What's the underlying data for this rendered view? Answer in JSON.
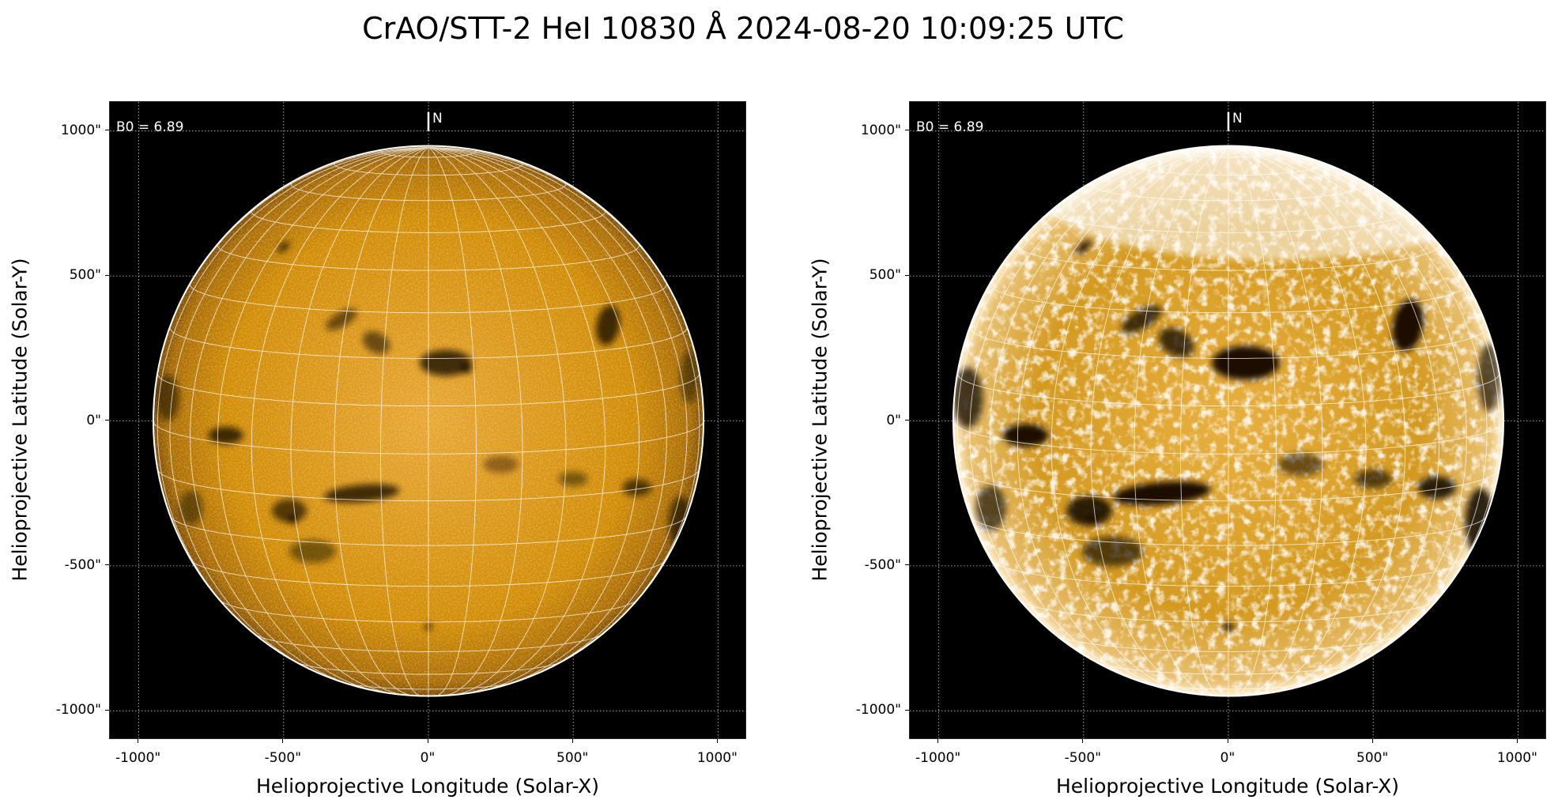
{
  "title": "CrAO/STT-2 HeI 10830 Å 2024-08-20 10:09:25 UTC",
  "colors": {
    "disk": "#d89200",
    "disk_bright": "#ffe9b0",
    "background": "#000000",
    "grid": "#ffffff"
  },
  "chart_data": [
    {
      "type": "heatmap",
      "panel": "left",
      "xlabel": "Helioprojective Longitude (Solar-X)",
      "ylabel": "Helioprojective Latitude (Solar-Y)",
      "xlim": [
        -1100,
        1100
      ],
      "ylim": [
        -1100,
        1100
      ],
      "x_ticks": [
        "-1000\"",
        "-500\"",
        "0\"",
        "500\"",
        "1000\""
      ],
      "y_ticks": [
        "1000\"",
        "500\"",
        "0\"",
        "-500\"",
        "-1000\""
      ],
      "tick_values": [
        -1000,
        -500,
        0,
        500,
        1000
      ],
      "grid": true,
      "annotation": "B0 = 6.89",
      "north_label": "N",
      "b0_deg": 6.89,
      "colormap": "orange-heat",
      "contrast": "normal"
    },
    {
      "type": "heatmap",
      "panel": "right",
      "xlabel": "Helioprojective Longitude (Solar-X)",
      "ylabel": "Helioprojective Latitude (Solar-Y)",
      "xlim": [
        -1100,
        1100
      ],
      "ylim": [
        -1100,
        1100
      ],
      "x_ticks": [
        "-1000\"",
        "-500\"",
        "0\"",
        "500\"",
        "1000\""
      ],
      "y_ticks": [
        "1000\"",
        "500\"",
        "0\"",
        "-500\"",
        "-1000\""
      ],
      "tick_values": [
        -1000,
        -500,
        0,
        500,
        1000
      ],
      "grid": true,
      "annotation": "B0 = 6.89",
      "north_label": "N",
      "b0_deg": 6.89,
      "colormap": "orange-heat",
      "contrast": "enhanced"
    }
  ]
}
